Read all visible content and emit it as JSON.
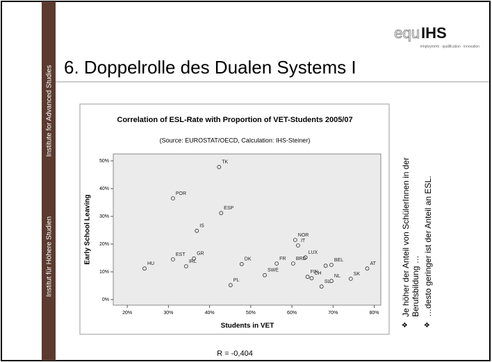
{
  "slide": {
    "logo": {
      "mark": "equ",
      "name": "IHS",
      "tagline": "employment · qualification · innovation"
    },
    "sidebar": [
      "Institute for Advanced Studies",
      "Institut für Höhere Studien"
    ],
    "title": "6. Doppelrolle des Dualen Systems I",
    "bullets": [
      "Je höher der Anteil von SchülerInnen in der Berufsbildung …",
      "…desto geringer ist der Anteil an ESL."
    ],
    "note": "R = -0,404"
  },
  "chart_data": {
    "type": "scatter",
    "title": "Correlation of ESL-Rate with Proportion of VET-Students 2005/07",
    "subtitle": "(Source: EUROSTAT/OECD, Calculation: IHS-Steiner)",
    "xlabel": "Students in VET",
    "ylabel": "Early School Leaving",
    "labels": [
      "TK",
      "POR",
      "ESP",
      "IS",
      "NOR",
      "IT",
      "EST",
      "GR",
      "HU",
      "IRL",
      "DK",
      "FR",
      "LUX",
      "BRD",
      "BEL",
      null,
      "FIN",
      "CH",
      "SL",
      "NL",
      "SWE",
      "PL",
      "SK",
      "AT"
    ],
    "x": [
      42.3,
      31.1,
      42.8,
      36.9,
      60.8,
      61.5,
      31.1,
      36.2,
      24.2,
      34.3,
      47.8,
      56.3,
      63.3,
      60.3,
      69.6,
      68.2,
      63.8,
      64.8,
      67.2,
      69.6,
      53.4,
      45.1,
      74.3,
      78.3
    ],
    "values": [
      47.8,
      36.5,
      31.2,
      24.8,
      21.5,
      19.5,
      14.5,
      14.8,
      11.2,
      12.0,
      12.8,
      13.0,
      15.2,
      13.0,
      12.5,
      12.2,
      8.2,
      7.7,
      4.7,
      6.7,
      8.8,
      5.2,
      7.5,
      11.2
    ],
    "marker_color": "#333333",
    "xlim": [
      16.6,
      81.6
    ],
    "ylim": [
      -2,
      52.5
    ],
    "xticks": [
      {
        "value": 20,
        "label": "20%"
      },
      {
        "value": 30,
        "label": "30%"
      },
      {
        "value": 40,
        "label": "40%"
      },
      {
        "value": 50,
        "label": "50%"
      },
      {
        "value": 60,
        "label": "60%"
      },
      {
        "value": 70,
        "label": "70%"
      },
      {
        "value": 80,
        "label": "80%"
      }
    ],
    "yticks": [
      {
        "value": 0,
        "label": "0%"
      },
      {
        "value": 10,
        "label": "10%"
      },
      {
        "value": 20,
        "label": "20%"
      },
      {
        "value": 30,
        "label": "30%"
      },
      {
        "value": 40,
        "label": "40%"
      },
      {
        "value": 50,
        "label": "50%"
      }
    ]
  }
}
